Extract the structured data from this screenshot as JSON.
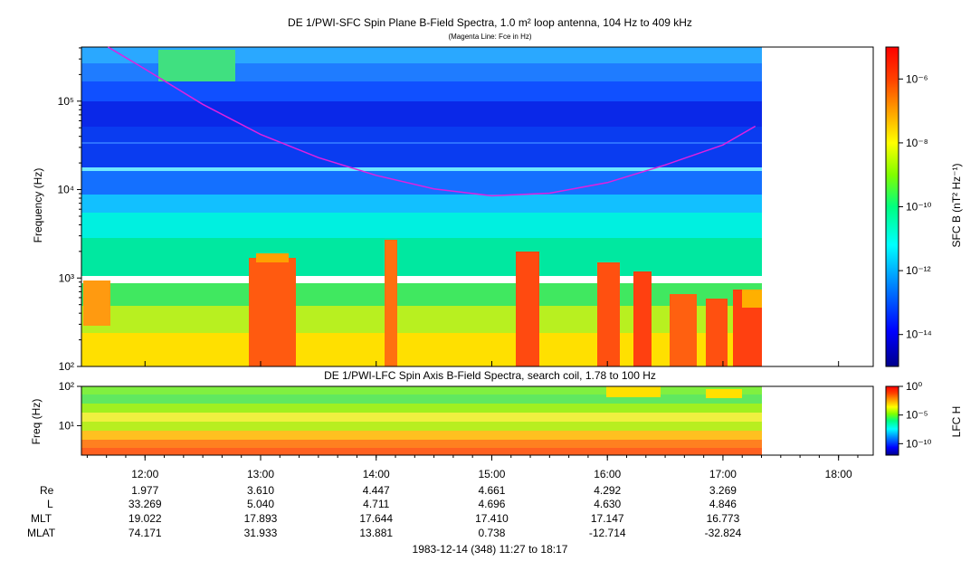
{
  "upper_panel": {
    "title": "DE 1/PWI-SFC  Spin Plane B-Field Spectra, 1.0 m² loop antenna, 104 Hz to 409 kHz",
    "subtitle": "(Magenta Line: Fce in Hz)",
    "ylabel": "Frequency (Hz)",
    "colorbar_label": "SFC B (nT² Hz⁻¹)",
    "colorbar_ticks": [
      "10⁻⁶",
      "10⁻⁸",
      "10⁻¹⁰",
      "10⁻¹²",
      "10⁻¹⁴"
    ]
  },
  "lower_panel": {
    "title": "DE 1/PWI-LFC  Spin Axis B-Field Spectra, search coil, 1.78 to 100 Hz",
    "ylabel": "Freq (Hz)",
    "colorbar_label": "LFC H",
    "colorbar_ticks": [
      "10⁰",
      "10⁻⁵",
      "10⁻¹⁰"
    ]
  },
  "ephemeris": {
    "labels": [
      "Re",
      "L",
      "MLT",
      "MLAT"
    ],
    "rows": [
      [
        "1.977",
        "3.610",
        "4.447",
        "4.661",
        "4.292",
        "3.269"
      ],
      [
        "33.269",
        "5.040",
        "4.711",
        "4.696",
        "4.630",
        "4.846"
      ],
      [
        "19.022",
        "17.893",
        "17.644",
        "17.410",
        "17.147",
        "16.773"
      ],
      [
        "74.171",
        "31.933",
        "13.881",
        "0.738",
        "-12.714",
        "-32.824"
      ]
    ]
  },
  "footer": "1983-12-14 (348) 11:27 to 18:17",
  "colors": {
    "fce_line": "#e020e0",
    "colormap": [
      "#00008b",
      "#0000ff",
      "#0080ff",
      "#00ffff",
      "#00ff80",
      "#80ff00",
      "#ffff00",
      "#ffa000",
      "#ff4000",
      "#ff0000"
    ]
  },
  "chart_data": [
    {
      "type": "heatmap",
      "title": "DE 1/PWI-SFC  Spin Plane B-Field Spectra, 1.0 m² loop antenna, 104 Hz to 409 kHz",
      "xlabel": "",
      "ylabel": "Frequency (Hz)",
      "ylim": [
        100,
        409000
      ],
      "yscale": "log",
      "y_ticks": [
        "10²",
        "10³",
        "10⁴",
        "10⁵"
      ],
      "x_ticks": [
        "12:00",
        "13:00",
        "14:00",
        "15:00",
        "16:00",
        "17:00",
        "18:00"
      ],
      "x_hours": [
        12,
        13,
        14,
        15,
        16,
        17,
        18
      ],
      "xlim_hours": [
        11.45,
        18.3
      ],
      "data_end_hour": 17.283,
      "fce_line": {
        "hours": [
          11.68,
          12.0,
          12.5,
          13.0,
          13.5,
          14.0,
          14.5,
          15.0,
          15.5,
          16.0,
          16.5,
          17.0,
          17.28
        ],
        "values_hz": [
          409000,
          230000,
          92000,
          42000,
          23000,
          14500,
          10200,
          8500,
          9100,
          12000,
          19000,
          32000,
          52000
        ]
      },
      "colorbar": {
        "label": "SFC B (nT² Hz⁻¹)",
        "min_exp": -15,
        "max_exp": -5
      }
    },
    {
      "type": "heatmap",
      "title": "DE 1/PWI-LFC  Spin Axis B-Field Spectra, search coil, 1.78 to 100 Hz",
      "ylabel": "Freq (Hz)",
      "ylim": [
        1.78,
        100
      ],
      "yscale": "log",
      "y_ticks": [
        "10¹",
        "10²"
      ],
      "colorbar": {
        "label": "LFC H",
        "min_exp": -12,
        "max_exp": 0
      }
    }
  ]
}
